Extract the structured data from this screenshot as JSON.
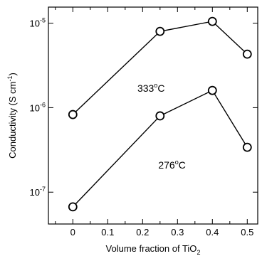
{
  "chart_data": {
    "type": "line",
    "xlabel_main": "Volume fraction of TiO",
    "xlabel_sub": "2",
    "ylabel_main": "Conductivity (S cm",
    "ylabel_sup": "-1",
    "ylabel_end": ")",
    "yscale": "log",
    "xlim": [
      -0.07,
      0.53
    ],
    "ylim": [
      4.2e-08,
      1.55e-05
    ],
    "x_ticks": [
      {
        "v": 0,
        "label": "0"
      },
      {
        "v": 0.1,
        "label": "0.1"
      },
      {
        "v": 0.2,
        "label": "0.2"
      },
      {
        "v": 0.3,
        "label": "0.3"
      },
      {
        "v": 0.4,
        "label": "0.4"
      },
      {
        "v": 0.5,
        "label": "0.5"
      }
    ],
    "y_ticks": [
      {
        "v": 1e-07,
        "base": "10",
        "exp": "-7"
      },
      {
        "v": 1e-06,
        "base": "10",
        "exp": "-6"
      },
      {
        "v": 1e-05,
        "base": "10",
        "exp": "-5"
      }
    ],
    "series": [
      {
        "x": [
          0,
          0.25,
          0.4,
          0.5
        ],
        "y": [
          8.3e-07,
          8e-06,
          1.05e-05,
          4.3e-06
        ],
        "label_main": "333",
        "label_sup": "o",
        "label_end": "C",
        "label_at": [
          0.185,
          1.55e-06
        ]
      },
      {
        "x": [
          0,
          0.25,
          0.4,
          0.5
        ],
        "y": [
          6.7e-08,
          8e-07,
          1.6e-06,
          3.4e-07
        ],
        "label_main": "276",
        "label_sup": "o",
        "label_end": "C",
        "label_at": [
          0.245,
          1.9e-07
        ]
      }
    ],
    "grid": false,
    "colors": {
      "line": "#000000",
      "marker_fill": "#ffffff"
    }
  }
}
